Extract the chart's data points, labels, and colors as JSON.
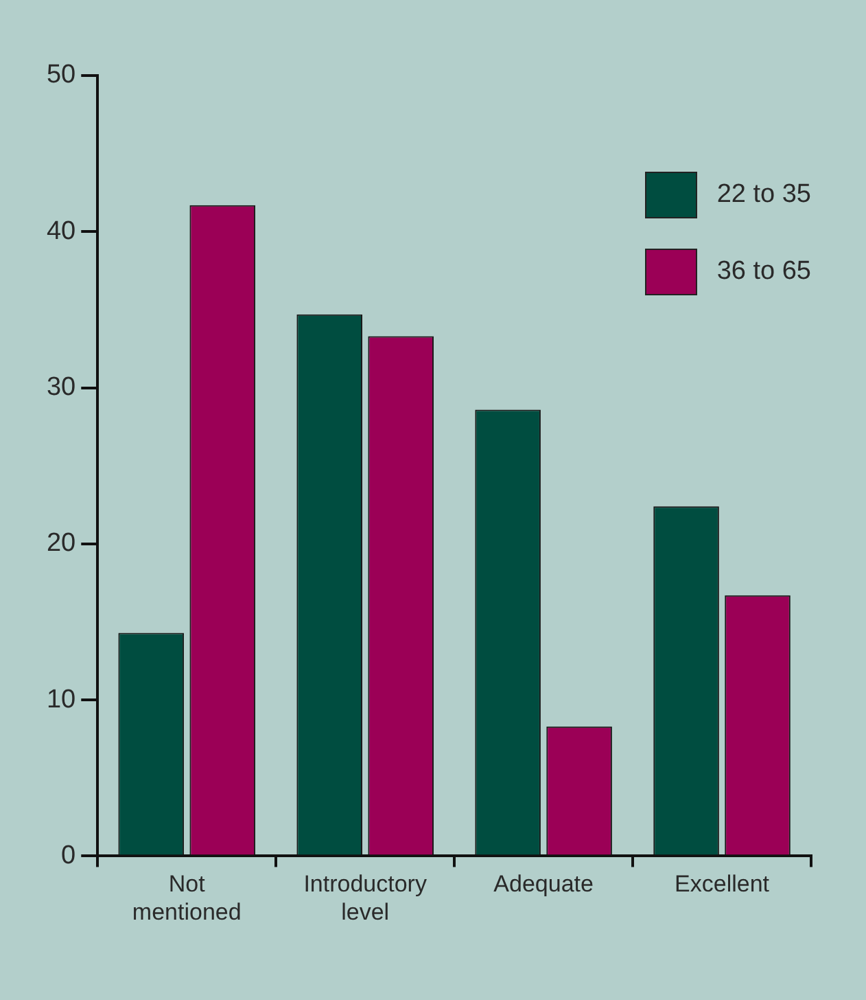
{
  "chart_data": {
    "type": "bar",
    "categories": [
      "Not mentioned",
      "Introductory level",
      "Adequate",
      "Excellent"
    ],
    "series": [
      {
        "name": "22 to 35",
        "color": "#004d40",
        "values": [
          14.3,
          34.7,
          28.6,
          22.4
        ]
      },
      {
        "name": "36 to 65",
        "color": "#9b0056",
        "values": [
          41.7,
          33.3,
          8.3,
          16.7
        ]
      }
    ],
    "ylim": [
      0,
      50
    ],
    "yticks": [
      0,
      10,
      20,
      30,
      40,
      50
    ],
    "grid": false,
    "legend": "top right"
  }
}
